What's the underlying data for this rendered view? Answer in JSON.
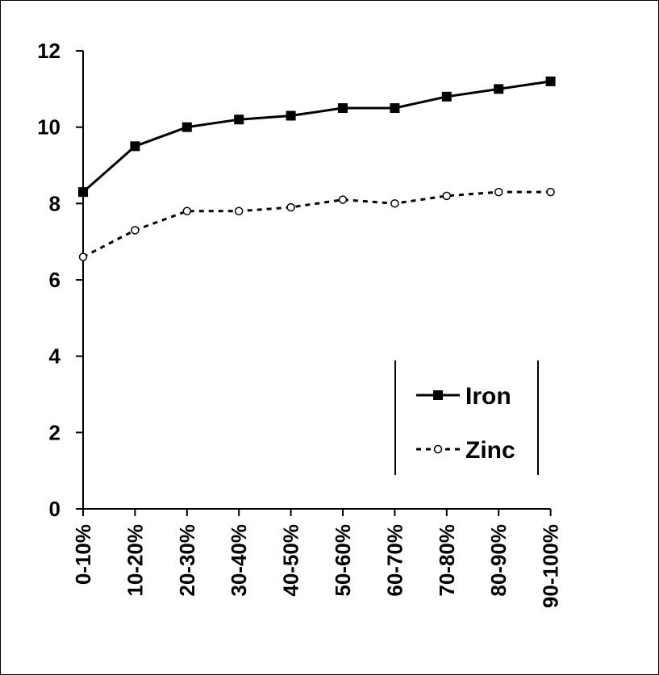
{
  "chart_data": {
    "type": "line",
    "title": "",
    "xlabel": "",
    "ylabel": "",
    "categories": [
      "0-10%",
      "10-20%",
      "20-30%",
      "30-40%",
      "40-50%",
      "50-60%",
      "60-70%",
      "70-80%",
      "80-90%",
      "90-100%"
    ],
    "ylim": [
      0,
      12
    ],
    "yticks": [
      "0",
      "2",
      "4",
      "6",
      "8",
      "10",
      "12"
    ],
    "grid": false,
    "legend_position": "lower-right",
    "series": [
      {
        "name": "Iron",
        "style": "solid",
        "marker": "filled-square",
        "color": "#000000",
        "values": [
          8.3,
          9.5,
          10.0,
          10.2,
          10.3,
          10.5,
          10.5,
          10.8,
          11.0,
          11.2
        ]
      },
      {
        "name": "Zinc",
        "style": "dotted",
        "marker": "open-circle",
        "color": "#000000",
        "values": [
          6.6,
          7.3,
          7.8,
          7.8,
          7.9,
          8.1,
          8.0,
          8.2,
          8.3,
          8.3
        ]
      }
    ]
  }
}
